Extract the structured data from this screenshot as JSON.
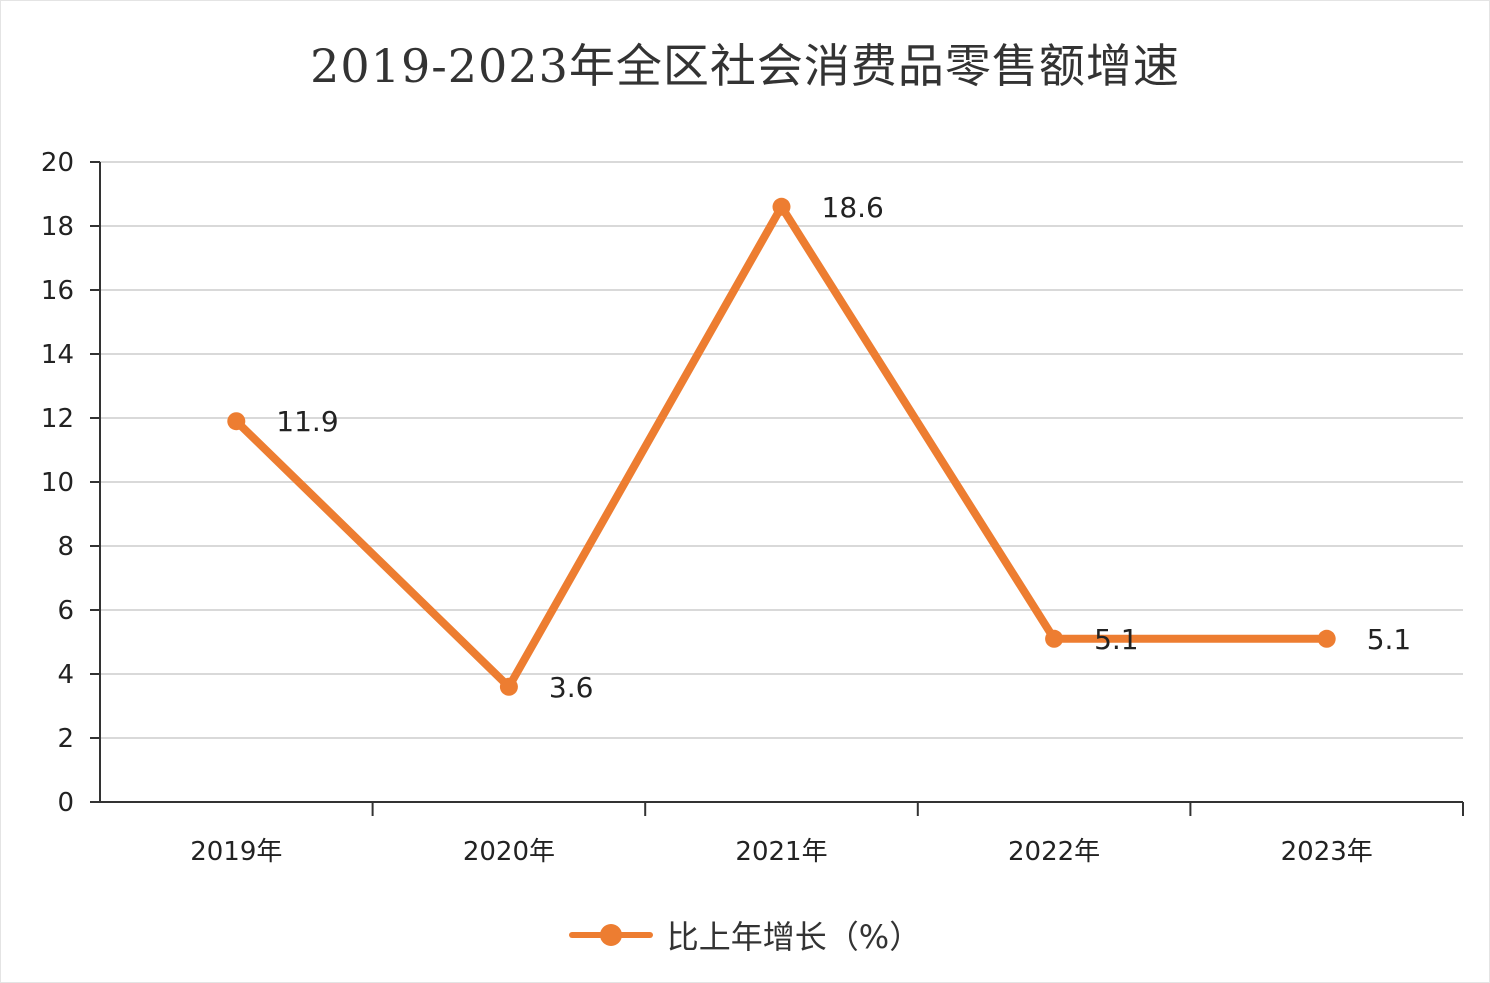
{
  "chart_data": {
    "type": "line",
    "title": "2019-2023年全区社会消费品零售额增速",
    "categories": [
      "2019年",
      "2020年",
      "2021年",
      "2022年",
      "2023年"
    ],
    "series": [
      {
        "name": "比上年增长（%）",
        "values": [
          11.9,
          3.6,
          18.6,
          5.1,
          5.1
        ],
        "color": "#ED7D31"
      }
    ],
    "data_labels": [
      "11.9",
      "3.6",
      "18.6",
      "5.1",
      "5.1"
    ],
    "ylim": [
      0,
      20
    ],
    "yticks": [
      "0",
      "2",
      "4",
      "6",
      "8",
      "10",
      "12",
      "14",
      "16",
      "18",
      "20"
    ],
    "xlabel": "",
    "ylabel": "",
    "grid": true,
    "legend": "bottom-center"
  }
}
